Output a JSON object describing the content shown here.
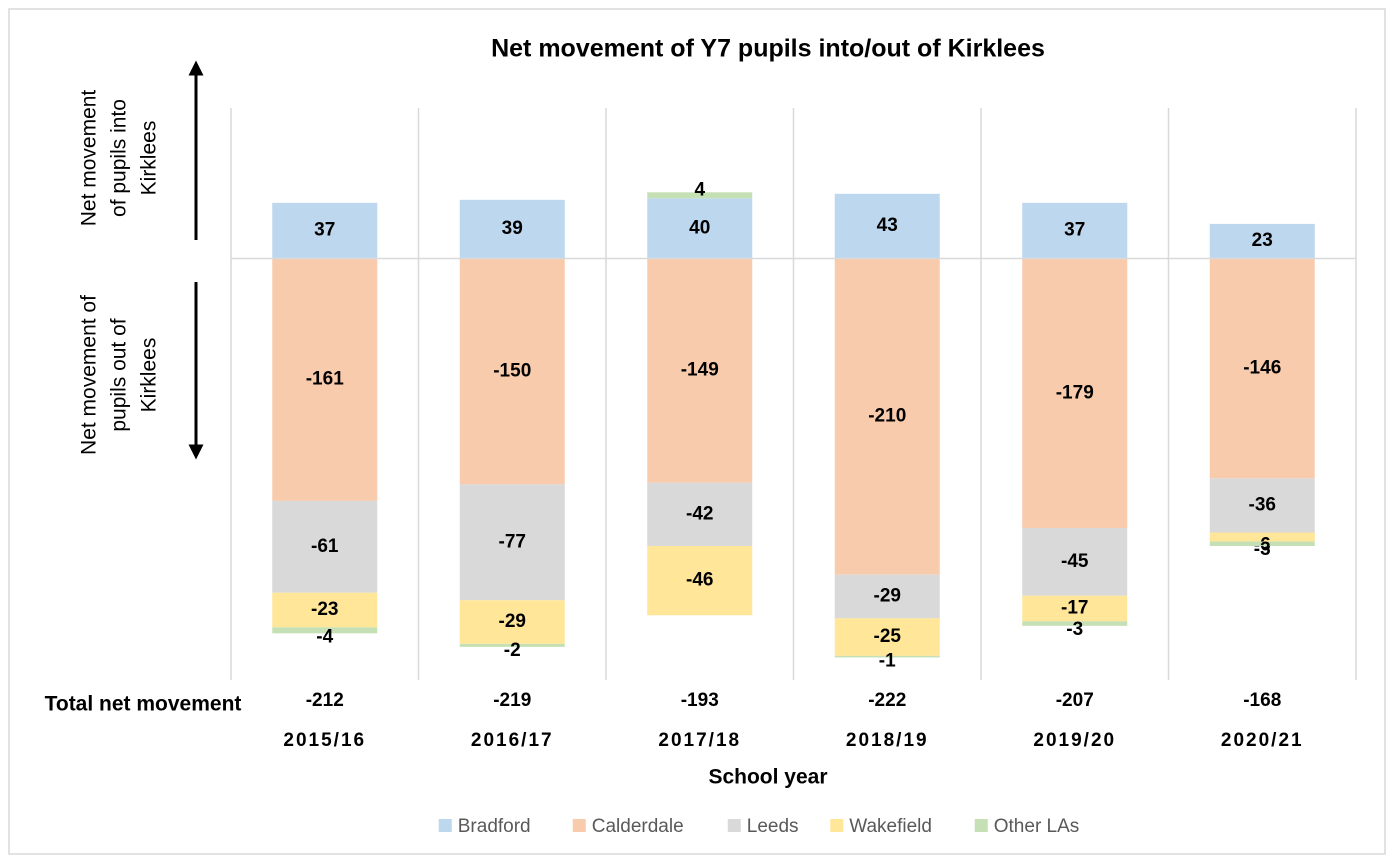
{
  "chart_data": {
    "type": "diverging_stacked_bar",
    "title": "Net movement of Y7 pupils into/out of Kirklees",
    "x_label": "School year",
    "annotation_into": [
      "Net movement",
      "of pupils into",
      "Kirklees"
    ],
    "annotation_out": [
      "Net movement of",
      "pupils out of",
      "Kirklees"
    ],
    "totals_label": "Total net movement",
    "categories": [
      "2015/16",
      "2016/17",
      "2017/18",
      "2018/19",
      "2019/20",
      "2020/21"
    ],
    "series": [
      {
        "name": "Bradford",
        "color": "#bdd7ee",
        "values": [
          37,
          39,
          40,
          43,
          37,
          23
        ]
      },
      {
        "name": "Calderdale",
        "color": "#f8cbad",
        "values": [
          -161,
          -150,
          -149,
          -210,
          -179,
          -146
        ]
      },
      {
        "name": "Leeds",
        "color": "#d9d9d9",
        "values": [
          -61,
          -77,
          -42,
          -29,
          -45,
          -36
        ]
      },
      {
        "name": "Wakefield",
        "color": "#ffe699",
        "values": [
          -23,
          -29,
          -46,
          -25,
          -17,
          -6
        ]
      },
      {
        "name": "Other LAs",
        "color": "#c5e0b4",
        "values": [
          -4,
          -2,
          4,
          -1,
          -3,
          -3
        ]
      }
    ],
    "totals": [
      -212,
      -219,
      -193,
      -222,
      -207,
      -168
    ],
    "ylim": [
      -280,
      100
    ],
    "legend": "bottom"
  }
}
